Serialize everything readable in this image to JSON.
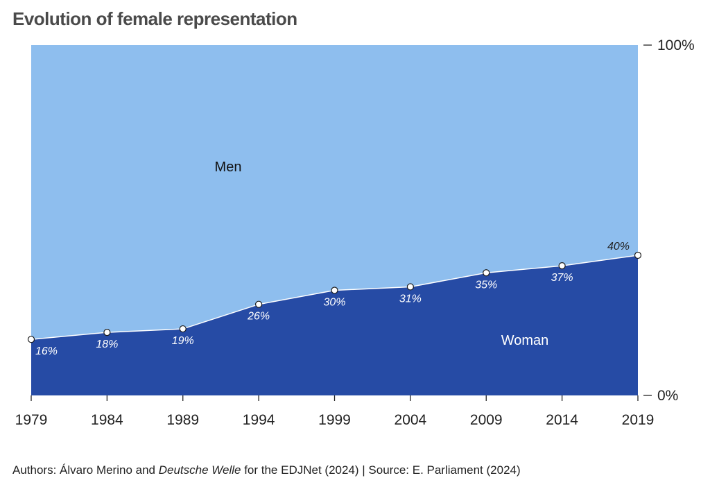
{
  "title": "Evolution of female representation",
  "chart_data": {
    "type": "area",
    "x": [
      1979,
      1984,
      1989,
      1994,
      1999,
      2004,
      2009,
      2014,
      2019
    ],
    "x_tick_labels": [
      "1979",
      "1984",
      "1989",
      "1994",
      "1999",
      "2004",
      "2009",
      "2014",
      "2019"
    ],
    "ylim": [
      0,
      100
    ],
    "y_tick_labels": [
      "100%",
      "0%"
    ],
    "y_axis_side": "right",
    "series": [
      {
        "name": "Woman",
        "values": [
          16,
          18,
          19,
          26,
          30,
          31,
          35,
          37,
          40
        ],
        "color": "#264ba5"
      },
      {
        "name": "Men",
        "values": [
          84,
          82,
          81,
          74,
          70,
          69,
          65,
          63,
          60
        ],
        "color": "#8ebeee"
      }
    ],
    "data_labels": [
      "16%",
      "18%",
      "19%",
      "26%",
      "30%",
      "31%",
      "35%",
      "37%",
      "40%"
    ],
    "area_labels": {
      "men": "Men",
      "women": "Woman"
    },
    "grid": false,
    "legend": "none"
  },
  "footer": {
    "authors_prefix": "Authors: Álvaro Merino and ",
    "authors_italic": "Deutsche Welle",
    "authors_suffix": " for the EDJNet (2024)",
    "separator": " | ",
    "source": "Source: E. Parliament (2024)"
  },
  "colors": {
    "men": "#8ebeee",
    "women": "#264ba5",
    "text": "#222222",
    "title": "#4a4a4a"
  }
}
